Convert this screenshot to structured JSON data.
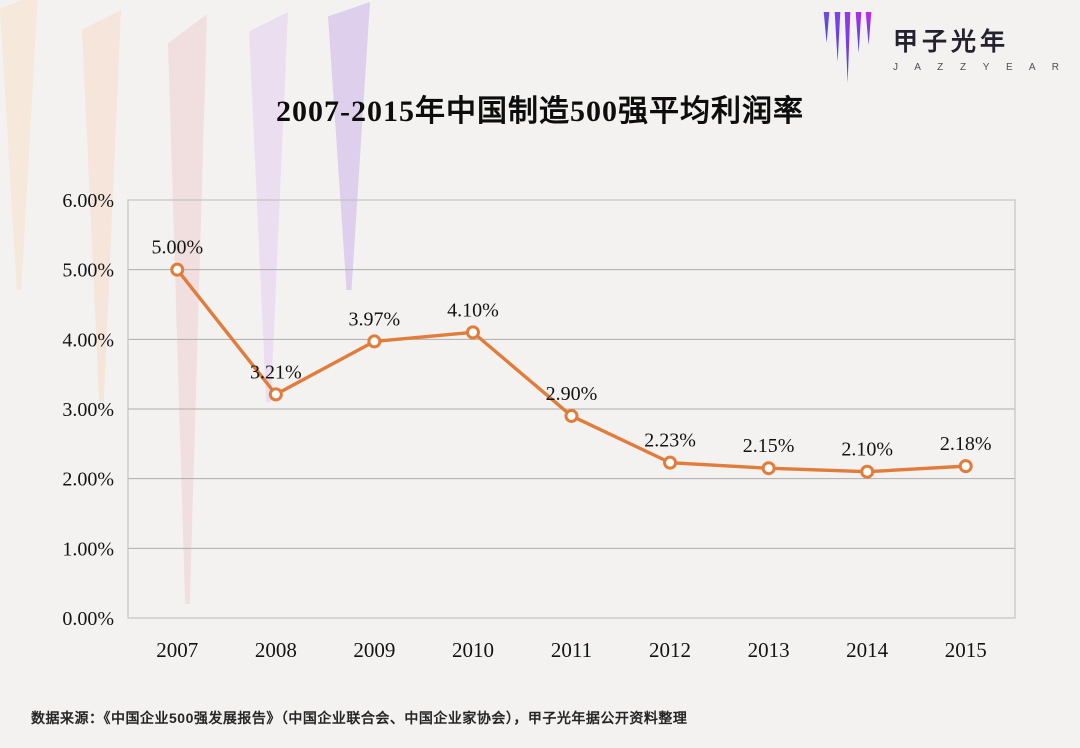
{
  "page": {
    "background": "#f3f2f0"
  },
  "logo": {
    "name": "甲子光年",
    "subtitle": "J A Z Z Y E A R",
    "spike_top_colors": [
      "#6e4be4",
      "#8440e8",
      "#9a36ea",
      "#ad2eea",
      "#c328ec"
    ],
    "spike_bottom_color": "#4447de",
    "spike_heights": [
      31,
      50,
      71,
      41,
      33
    ]
  },
  "title": {
    "text": "2007-2015年中国制造500强平均利润率"
  },
  "source": {
    "text": "数据来源：《中国企业500强发展报告》（中国企业联合会、中国企业家协会），甲子光年据公开资料整理"
  },
  "decoration": {
    "icicle_colors": [
      "#f6e8da",
      "#f6e5da",
      "#f1dfdf",
      "#ebdef1",
      "#ded0ec"
    ]
  },
  "chart_data": {
    "type": "line",
    "title": "2007-2015年中国制造500强平均利润率",
    "categories": [
      "2007",
      "2008",
      "2009",
      "2010",
      "2011",
      "2012",
      "2013",
      "2014",
      "2015"
    ],
    "series": [
      {
        "name": "平均利润率",
        "values": [
          5.0,
          3.21,
          3.97,
          4.1,
          2.9,
          2.23,
          2.15,
          2.1,
          2.18
        ]
      }
    ],
    "data_labels": [
      "5.00%",
      "3.21%",
      "3.97%",
      "4.10%",
      "2.90%",
      "2.23%",
      "2.15%",
      "2.10%",
      "2.18%"
    ],
    "xlabel": "",
    "ylabel": "",
    "ylim": [
      0,
      6
    ],
    "y_tick_step": 1,
    "y_tick_labels": [
      "0.00%",
      "1.00%",
      "2.00%",
      "3.00%",
      "4.00%",
      "5.00%",
      "6.00%"
    ],
    "grid": true,
    "legend": "none",
    "line_color": "#e27c3a",
    "marker": "open-circle",
    "marker_fill": "#ffffff",
    "grid_color": "#aeadab",
    "border_color": "#c4c3c1",
    "label_color": "#141414"
  }
}
